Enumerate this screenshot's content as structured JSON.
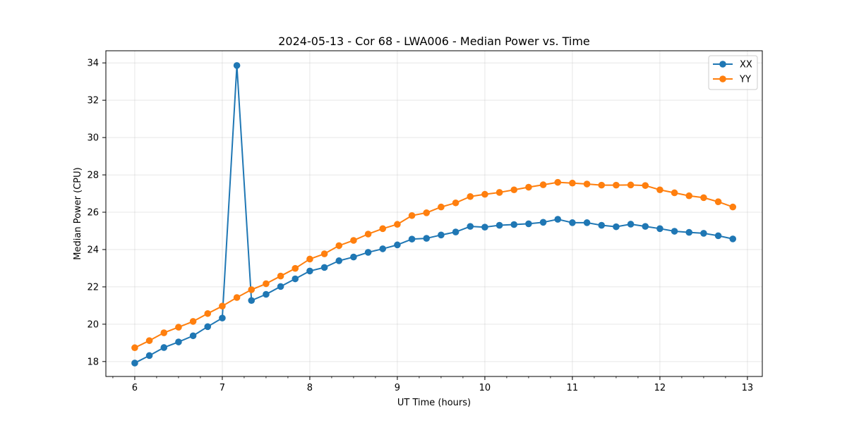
{
  "chart_data": {
    "type": "line",
    "title": "2024-05-13 - Cor 68 - LWA006 - Median Power vs. Time",
    "xlabel": "UT Time (hours)",
    "ylabel": "Median Power (CPU)",
    "xlim": [
      5.67,
      13.17
    ],
    "ylim": [
      17.2,
      34.65
    ],
    "xticks": [
      6,
      7,
      8,
      9,
      10,
      11,
      12,
      13
    ],
    "yticks": [
      18,
      20,
      22,
      24,
      26,
      28,
      30,
      32,
      34
    ],
    "x_minor_step": 0.25,
    "grid": true,
    "legend_position": "upper right",
    "x": [
      6.0,
      6.1667,
      6.3333,
      6.5,
      6.6667,
      6.8333,
      7.0,
      7.1667,
      7.3333,
      7.5,
      7.6667,
      7.8333,
      8.0,
      8.1667,
      8.3333,
      8.5,
      8.6667,
      8.8333,
      9.0,
      9.1667,
      9.3333,
      9.5,
      9.6667,
      9.8333,
      10.0,
      10.1667,
      10.3333,
      10.5,
      10.6667,
      10.8333,
      11.0,
      11.1667,
      11.3333,
      11.5,
      11.6667,
      11.8333,
      12.0,
      12.1667,
      12.3333,
      12.5,
      12.6667,
      12.8333
    ],
    "series": [
      {
        "name": "XX",
        "color": "#1f77b4",
        "values": [
          17.92,
          18.32,
          18.75,
          19.05,
          19.38,
          19.87,
          20.33,
          33.86,
          21.27,
          21.6,
          22.02,
          22.43,
          22.85,
          23.04,
          23.4,
          23.6,
          23.85,
          24.04,
          24.25,
          24.56,
          24.6,
          24.78,
          24.94,
          25.24,
          25.2,
          25.3,
          25.34,
          25.38,
          25.46,
          25.62,
          25.44,
          25.44,
          25.3,
          25.22,
          25.36,
          25.24,
          25.12,
          24.98,
          24.92,
          24.87,
          24.74,
          24.57
        ]
      },
      {
        "name": "YY",
        "color": "#ff7f0e",
        "values": [
          18.74,
          19.12,
          19.54,
          19.84,
          20.15,
          20.57,
          20.97,
          21.43,
          21.85,
          22.17,
          22.58,
          22.99,
          23.49,
          23.77,
          24.21,
          24.49,
          24.83,
          25.12,
          25.35,
          25.82,
          25.97,
          26.28,
          26.5,
          26.84,
          26.96,
          27.06,
          27.2,
          27.34,
          27.47,
          27.6,
          27.56,
          27.51,
          27.45,
          27.45,
          27.46,
          27.43,
          27.2,
          27.04,
          26.88,
          26.78,
          26.56,
          26.28
        ]
      }
    ]
  }
}
